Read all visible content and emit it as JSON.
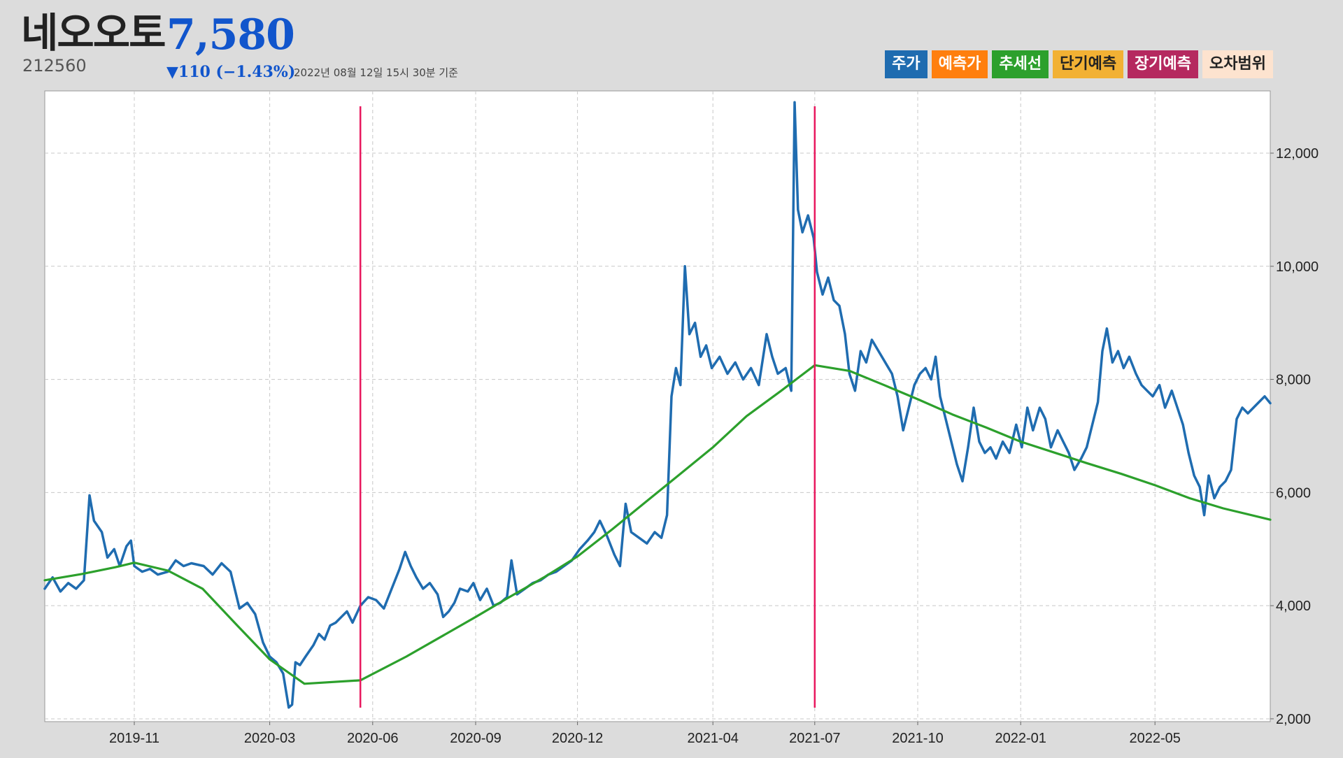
{
  "header": {
    "name": "네오오토",
    "price": "7,580",
    "code": "212560",
    "change": "▼110 (−1.43%)",
    "timestamp": "2022년 08월 12일 15시 30분 기준"
  },
  "legend": [
    {
      "label": "주가",
      "bg": "#1f6cb0",
      "fg": "#ffffff"
    },
    {
      "label": "예측가",
      "bg": "#ff7f0e",
      "fg": "#ffffff"
    },
    {
      "label": "추세선",
      "bg": "#2ca02c",
      "fg": "#ffffff"
    },
    {
      "label": "단기예측",
      "bg": "#f2b134",
      "fg": "#222222"
    },
    {
      "label": "장기예측",
      "bg": "#b5295f",
      "fg": "#ffffff"
    },
    {
      "label": "오차범위",
      "bg": "#fde3cf",
      "fg": "#222222"
    }
  ],
  "chart_data": {
    "type": "line",
    "x_start": "2019-08-13",
    "x_end": "2022-08-12",
    "ylim": [
      1950,
      13100
    ],
    "yticks": [
      2000,
      4000,
      6000,
      8000,
      10000,
      12000
    ],
    "ytick_labels": [
      "2,000",
      "4,000",
      "6,000",
      "8,000",
      "10,000",
      "12,000"
    ],
    "xticks": [
      "2019-11-01",
      "2020-03-01",
      "2020-06-01",
      "2020-09-01",
      "2020-12-01",
      "2021-04-01",
      "2021-07-01",
      "2021-10-01",
      "2022-01-01",
      "2022-05-01"
    ],
    "xtick_labels": [
      "2019-11",
      "2020-03",
      "2020-06",
      "2020-09",
      "2020-12",
      "2021-04",
      "2021-07",
      "2021-10",
      "2022-01",
      "2022-05"
    ],
    "grid": true,
    "colors": {
      "price": "#1f6cb0",
      "trend": "#2ca02c",
      "vline": "#e8175d"
    },
    "vlines": [
      "2020-05-21",
      "2021-07-01"
    ],
    "series": [
      {
        "key": "price",
        "points": [
          [
            "2019-08-13",
            4300
          ],
          [
            "2019-08-20",
            4500
          ],
          [
            "2019-08-27",
            4250
          ],
          [
            "2019-09-03",
            4400
          ],
          [
            "2019-09-10",
            4300
          ],
          [
            "2019-09-17",
            4450
          ],
          [
            "2019-09-22",
            5950
          ],
          [
            "2019-09-26",
            5500
          ],
          [
            "2019-10-03",
            5300
          ],
          [
            "2019-10-08",
            4850
          ],
          [
            "2019-10-14",
            5000
          ],
          [
            "2019-10-19",
            4700
          ],
          [
            "2019-10-25",
            5050
          ],
          [
            "2019-10-29",
            5150
          ],
          [
            "2019-11-01",
            4700
          ],
          [
            "2019-11-08",
            4600
          ],
          [
            "2019-11-15",
            4650
          ],
          [
            "2019-11-22",
            4550
          ],
          [
            "2019-12-01",
            4600
          ],
          [
            "2019-12-08",
            4800
          ],
          [
            "2019-12-15",
            4700
          ],
          [
            "2019-12-22",
            4750
          ],
          [
            "2020-01-02",
            4700
          ],
          [
            "2020-01-10",
            4550
          ],
          [
            "2020-01-18",
            4750
          ],
          [
            "2020-01-26",
            4600
          ],
          [
            "2020-02-03",
            3950
          ],
          [
            "2020-02-10",
            4050
          ],
          [
            "2020-02-17",
            3850
          ],
          [
            "2020-02-24",
            3350
          ],
          [
            "2020-03-01",
            3100
          ],
          [
            "2020-03-07",
            3000
          ],
          [
            "2020-03-13",
            2800
          ],
          [
            "2020-03-18",
            2200
          ],
          [
            "2020-03-21",
            2250
          ],
          [
            "2020-03-24",
            3000
          ],
          [
            "2020-03-28",
            2950
          ],
          [
            "2020-04-02",
            3100
          ],
          [
            "2020-04-09",
            3300
          ],
          [
            "2020-04-14",
            3500
          ],
          [
            "2020-04-19",
            3400
          ],
          [
            "2020-04-24",
            3650
          ],
          [
            "2020-04-29",
            3700
          ],
          [
            "2020-05-04",
            3800
          ],
          [
            "2020-05-09",
            3900
          ],
          [
            "2020-05-14",
            3700
          ],
          [
            "2020-05-21",
            4000
          ],
          [
            "2020-05-28",
            4150
          ],
          [
            "2020-06-04",
            4100
          ],
          [
            "2020-06-11",
            3950
          ],
          [
            "2020-06-18",
            4300
          ],
          [
            "2020-06-25",
            4650
          ],
          [
            "2020-06-30",
            4950
          ],
          [
            "2020-07-05",
            4700
          ],
          [
            "2020-07-10",
            4500
          ],
          [
            "2020-07-16",
            4300
          ],
          [
            "2020-07-22",
            4400
          ],
          [
            "2020-07-29",
            4200
          ],
          [
            "2020-08-03",
            3800
          ],
          [
            "2020-08-08",
            3900
          ],
          [
            "2020-08-13",
            4050
          ],
          [
            "2020-08-18",
            4300
          ],
          [
            "2020-08-25",
            4250
          ],
          [
            "2020-08-30",
            4400
          ],
          [
            "2020-09-05",
            4100
          ],
          [
            "2020-09-11",
            4300
          ],
          [
            "2020-09-17",
            4000
          ],
          [
            "2020-09-23",
            4050
          ],
          [
            "2020-09-29",
            4150
          ],
          [
            "2020-10-03",
            4800
          ],
          [
            "2020-10-08",
            4200
          ],
          [
            "2020-10-15",
            4300
          ],
          [
            "2020-10-22",
            4400
          ],
          [
            "2020-10-29",
            4450
          ],
          [
            "2020-11-05",
            4550
          ],
          [
            "2020-11-12",
            4600
          ],
          [
            "2020-11-19",
            4700
          ],
          [
            "2020-11-26",
            4800
          ],
          [
            "2020-12-03",
            5000
          ],
          [
            "2020-12-10",
            5150
          ],
          [
            "2020-12-16",
            5300
          ],
          [
            "2020-12-21",
            5500
          ],
          [
            "2020-12-27",
            5250
          ],
          [
            "2021-01-03",
            4900
          ],
          [
            "2021-01-08",
            4700
          ],
          [
            "2021-01-13",
            5800
          ],
          [
            "2021-01-18",
            5300
          ],
          [
            "2021-01-25",
            5200
          ],
          [
            "2021-02-01",
            5100
          ],
          [
            "2021-02-08",
            5300
          ],
          [
            "2021-02-14",
            5200
          ],
          [
            "2021-02-19",
            5600
          ],
          [
            "2021-02-23",
            7700
          ],
          [
            "2021-02-27",
            8200
          ],
          [
            "2021-03-03",
            7900
          ],
          [
            "2021-03-07",
            10000
          ],
          [
            "2021-03-11",
            8800
          ],
          [
            "2021-03-16",
            9000
          ],
          [
            "2021-03-21",
            8400
          ],
          [
            "2021-03-26",
            8600
          ],
          [
            "2021-03-31",
            8200
          ],
          [
            "2021-04-07",
            8400
          ],
          [
            "2021-04-14",
            8100
          ],
          [
            "2021-04-21",
            8300
          ],
          [
            "2021-04-28",
            8000
          ],
          [
            "2021-05-05",
            8200
          ],
          [
            "2021-05-12",
            7900
          ],
          [
            "2021-05-19",
            8800
          ],
          [
            "2021-05-24",
            8400
          ],
          [
            "2021-05-29",
            8100
          ],
          [
            "2021-06-05",
            8200
          ],
          [
            "2021-06-10",
            7800
          ],
          [
            "2021-06-13",
            12900
          ],
          [
            "2021-06-16",
            11000
          ],
          [
            "2021-06-20",
            10600
          ],
          [
            "2021-06-25",
            10900
          ],
          [
            "2021-06-30",
            10500
          ],
          [
            "2021-07-03",
            9900
          ],
          [
            "2021-07-08",
            9500
          ],
          [
            "2021-07-13",
            9800
          ],
          [
            "2021-07-18",
            9400
          ],
          [
            "2021-07-23",
            9300
          ],
          [
            "2021-07-28",
            8800
          ],
          [
            "2021-08-01",
            8100
          ],
          [
            "2021-08-06",
            7800
          ],
          [
            "2021-08-11",
            8500
          ],
          [
            "2021-08-16",
            8300
          ],
          [
            "2021-08-21",
            8700
          ],
          [
            "2021-08-27",
            8500
          ],
          [
            "2021-09-02",
            8300
          ],
          [
            "2021-09-08",
            8100
          ],
          [
            "2021-09-13",
            7700
          ],
          [
            "2021-09-18",
            7100
          ],
          [
            "2021-09-23",
            7500
          ],
          [
            "2021-09-28",
            7900
          ],
          [
            "2021-10-03",
            8100
          ],
          [
            "2021-10-08",
            8200
          ],
          [
            "2021-10-13",
            8000
          ],
          [
            "2021-10-17",
            8400
          ],
          [
            "2021-10-21",
            7700
          ],
          [
            "2021-10-26",
            7300
          ],
          [
            "2021-10-31",
            6900
          ],
          [
            "2021-11-05",
            6500
          ],
          [
            "2021-11-10",
            6200
          ],
          [
            "2021-11-15",
            6800
          ],
          [
            "2021-11-20",
            7500
          ],
          [
            "2021-11-25",
            6900
          ],
          [
            "2021-11-30",
            6700
          ],
          [
            "2021-12-05",
            6800
          ],
          [
            "2021-12-10",
            6600
          ],
          [
            "2021-12-16",
            6900
          ],
          [
            "2021-12-22",
            6700
          ],
          [
            "2021-12-28",
            7200
          ],
          [
            "2022-01-02",
            6800
          ],
          [
            "2022-01-07",
            7500
          ],
          [
            "2022-01-12",
            7100
          ],
          [
            "2022-01-18",
            7500
          ],
          [
            "2022-01-23",
            7300
          ],
          [
            "2022-01-28",
            6800
          ],
          [
            "2022-02-03",
            7100
          ],
          [
            "2022-02-08",
            6900
          ],
          [
            "2022-02-13",
            6700
          ],
          [
            "2022-02-18",
            6400
          ],
          [
            "2022-02-24",
            6600
          ],
          [
            "2022-03-01",
            6800
          ],
          [
            "2022-03-06",
            7200
          ],
          [
            "2022-03-11",
            7600
          ],
          [
            "2022-03-15",
            8500
          ],
          [
            "2022-03-19",
            8900
          ],
          [
            "2022-03-24",
            8300
          ],
          [
            "2022-03-29",
            8500
          ],
          [
            "2022-04-03",
            8200
          ],
          [
            "2022-04-08",
            8400
          ],
          [
            "2022-04-14",
            8100
          ],
          [
            "2022-04-19",
            7900
          ],
          [
            "2022-04-24",
            7800
          ],
          [
            "2022-04-29",
            7700
          ],
          [
            "2022-05-05",
            7900
          ],
          [
            "2022-05-10",
            7500
          ],
          [
            "2022-05-16",
            7800
          ],
          [
            "2022-05-21",
            7500
          ],
          [
            "2022-05-26",
            7200
          ],
          [
            "2022-05-31",
            6700
          ],
          [
            "2022-06-05",
            6300
          ],
          [
            "2022-06-10",
            6100
          ],
          [
            "2022-06-14",
            5600
          ],
          [
            "2022-06-18",
            6300
          ],
          [
            "2022-06-23",
            5900
          ],
          [
            "2022-06-28",
            6100
          ],
          [
            "2022-07-03",
            6200
          ],
          [
            "2022-07-08",
            6400
          ],
          [
            "2022-07-13",
            7300
          ],
          [
            "2022-07-18",
            7500
          ],
          [
            "2022-07-23",
            7400
          ],
          [
            "2022-07-28",
            7500
          ],
          [
            "2022-08-02",
            7600
          ],
          [
            "2022-08-07",
            7700
          ],
          [
            "2022-08-12",
            7580
          ]
        ]
      },
      {
        "key": "trend",
        "points": [
          [
            "2019-08-13",
            4450
          ],
          [
            "2019-09-15",
            4560
          ],
          [
            "2019-10-15",
            4680
          ],
          [
            "2019-11-01",
            4760
          ],
          [
            "2019-12-01",
            4620
          ],
          [
            "2020-01-01",
            4300
          ],
          [
            "2020-02-01",
            3650
          ],
          [
            "2020-03-01",
            3050
          ],
          [
            "2020-04-01",
            2620
          ],
          [
            "2020-05-21",
            2680
          ],
          [
            "2020-07-01",
            3100
          ],
          [
            "2020-08-01",
            3450
          ],
          [
            "2020-09-01",
            3800
          ],
          [
            "2020-10-01",
            4150
          ],
          [
            "2020-11-01",
            4500
          ],
          [
            "2020-12-01",
            4870
          ],
          [
            "2021-01-01",
            5350
          ],
          [
            "2021-02-01",
            5850
          ],
          [
            "2021-03-01",
            6300
          ],
          [
            "2021-04-01",
            6800
          ],
          [
            "2021-05-01",
            7350
          ],
          [
            "2021-06-01",
            7800
          ],
          [
            "2021-07-01",
            8250
          ],
          [
            "2021-08-01",
            8150
          ],
          [
            "2021-09-01",
            7900
          ],
          [
            "2021-10-01",
            7650
          ],
          [
            "2021-11-01",
            7380
          ],
          [
            "2021-12-01",
            7150
          ],
          [
            "2022-01-01",
            6900
          ],
          [
            "2022-02-01",
            6700
          ],
          [
            "2022-03-01",
            6520
          ],
          [
            "2022-04-01",
            6330
          ],
          [
            "2022-05-01",
            6130
          ],
          [
            "2022-06-01",
            5900
          ],
          [
            "2022-07-01",
            5720
          ],
          [
            "2022-08-12",
            5520
          ]
        ]
      }
    ]
  }
}
